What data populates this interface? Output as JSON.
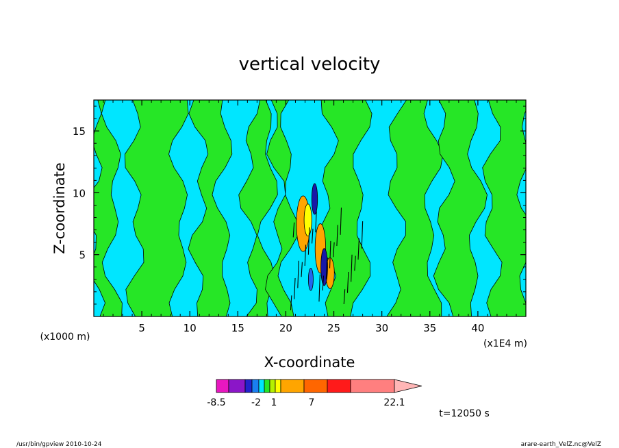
{
  "chart_data": {
    "type": "heatmap",
    "title": "vertical velocity",
    "xlabel": "X-coordinate",
    "ylabel": "Z-coordinate",
    "x_unit_left": "(x1000 m)",
    "x_unit_right": "(x1E4 m)",
    "xlim": [
      0,
      45
    ],
    "ylim": [
      0,
      17.5
    ],
    "x_ticks": [
      "5",
      "10",
      "15",
      "20",
      "25",
      "30",
      "35",
      "40"
    ],
    "x_tick_values": [
      5,
      10,
      15,
      20,
      25,
      30,
      35,
      40
    ],
    "y_ticks": [
      "5",
      "10",
      "15"
    ],
    "y_tick_values": [
      5,
      10,
      15
    ],
    "colorbar": {
      "labels": [
        "-8.5",
        "-2",
        "1",
        "7",
        "22.1"
      ],
      "label_values": [
        -8.5,
        -2,
        1,
        7,
        22.1
      ],
      "colors": [
        "#e817c0",
        "#8b16c8",
        "#2222cc",
        "#1a7ff0",
        "#00e6ff",
        "#26e626",
        "#b4f000",
        "#ffff00",
        "#ffa500",
        "#ff6600",
        "#ff1a1a",
        "#ff7f7f",
        "#ffb6b6"
      ]
    },
    "green_bands_x": [
      [
        0,
        2
      ],
      [
        4.3,
        9
      ],
      [
        11,
        13.5
      ],
      [
        16.2,
        18.2
      ],
      [
        19,
        20.3
      ],
      [
        24.3,
        27.8
      ],
      [
        31.5,
        35.2
      ],
      [
        36.4,
        39.8
      ],
      [
        41.4,
        45
      ]
    ],
    "cyan_bands_x": [
      [
        2,
        4.3
      ],
      [
        9,
        11
      ],
      [
        13.5,
        16.2
      ],
      [
        18.2,
        19
      ],
      [
        20.3,
        24.3
      ],
      [
        27.8,
        31.5
      ],
      [
        35.2,
        36.4
      ],
      [
        39.8,
        41.4
      ]
    ],
    "updraft_cells": [
      {
        "x": 21.8,
        "z": 7.5,
        "w": 1.4,
        "h": 4.5,
        "level": "orange"
      },
      {
        "x": 22.3,
        "z": 7.8,
        "w": 0.8,
        "h": 2.6,
        "level": "yellow"
      },
      {
        "x": 23.6,
        "z": 5.5,
        "w": 1.1,
        "h": 4.0,
        "level": "orange"
      },
      {
        "x": 24.6,
        "z": 3.5,
        "w": 0.9,
        "h": 2.5,
        "level": "orange"
      }
    ],
    "downdraft_cells": [
      {
        "x": 23.0,
        "z": 9.5,
        "w": 0.6,
        "h": 2.5,
        "level": "dark-blue"
      },
      {
        "x": 24.0,
        "z": 4.0,
        "w": 0.7,
        "h": 3.0,
        "level": "dark-blue"
      },
      {
        "x": 22.6,
        "z": 3.0,
        "w": 0.5,
        "h": 1.8,
        "level": "blue"
      }
    ]
  },
  "annotations": {
    "time": "t=12050 s",
    "footer_left": "/usr/bin/gpview  2010-10-24",
    "footer_right": "arare-earth_VelZ.nc@VelZ"
  }
}
